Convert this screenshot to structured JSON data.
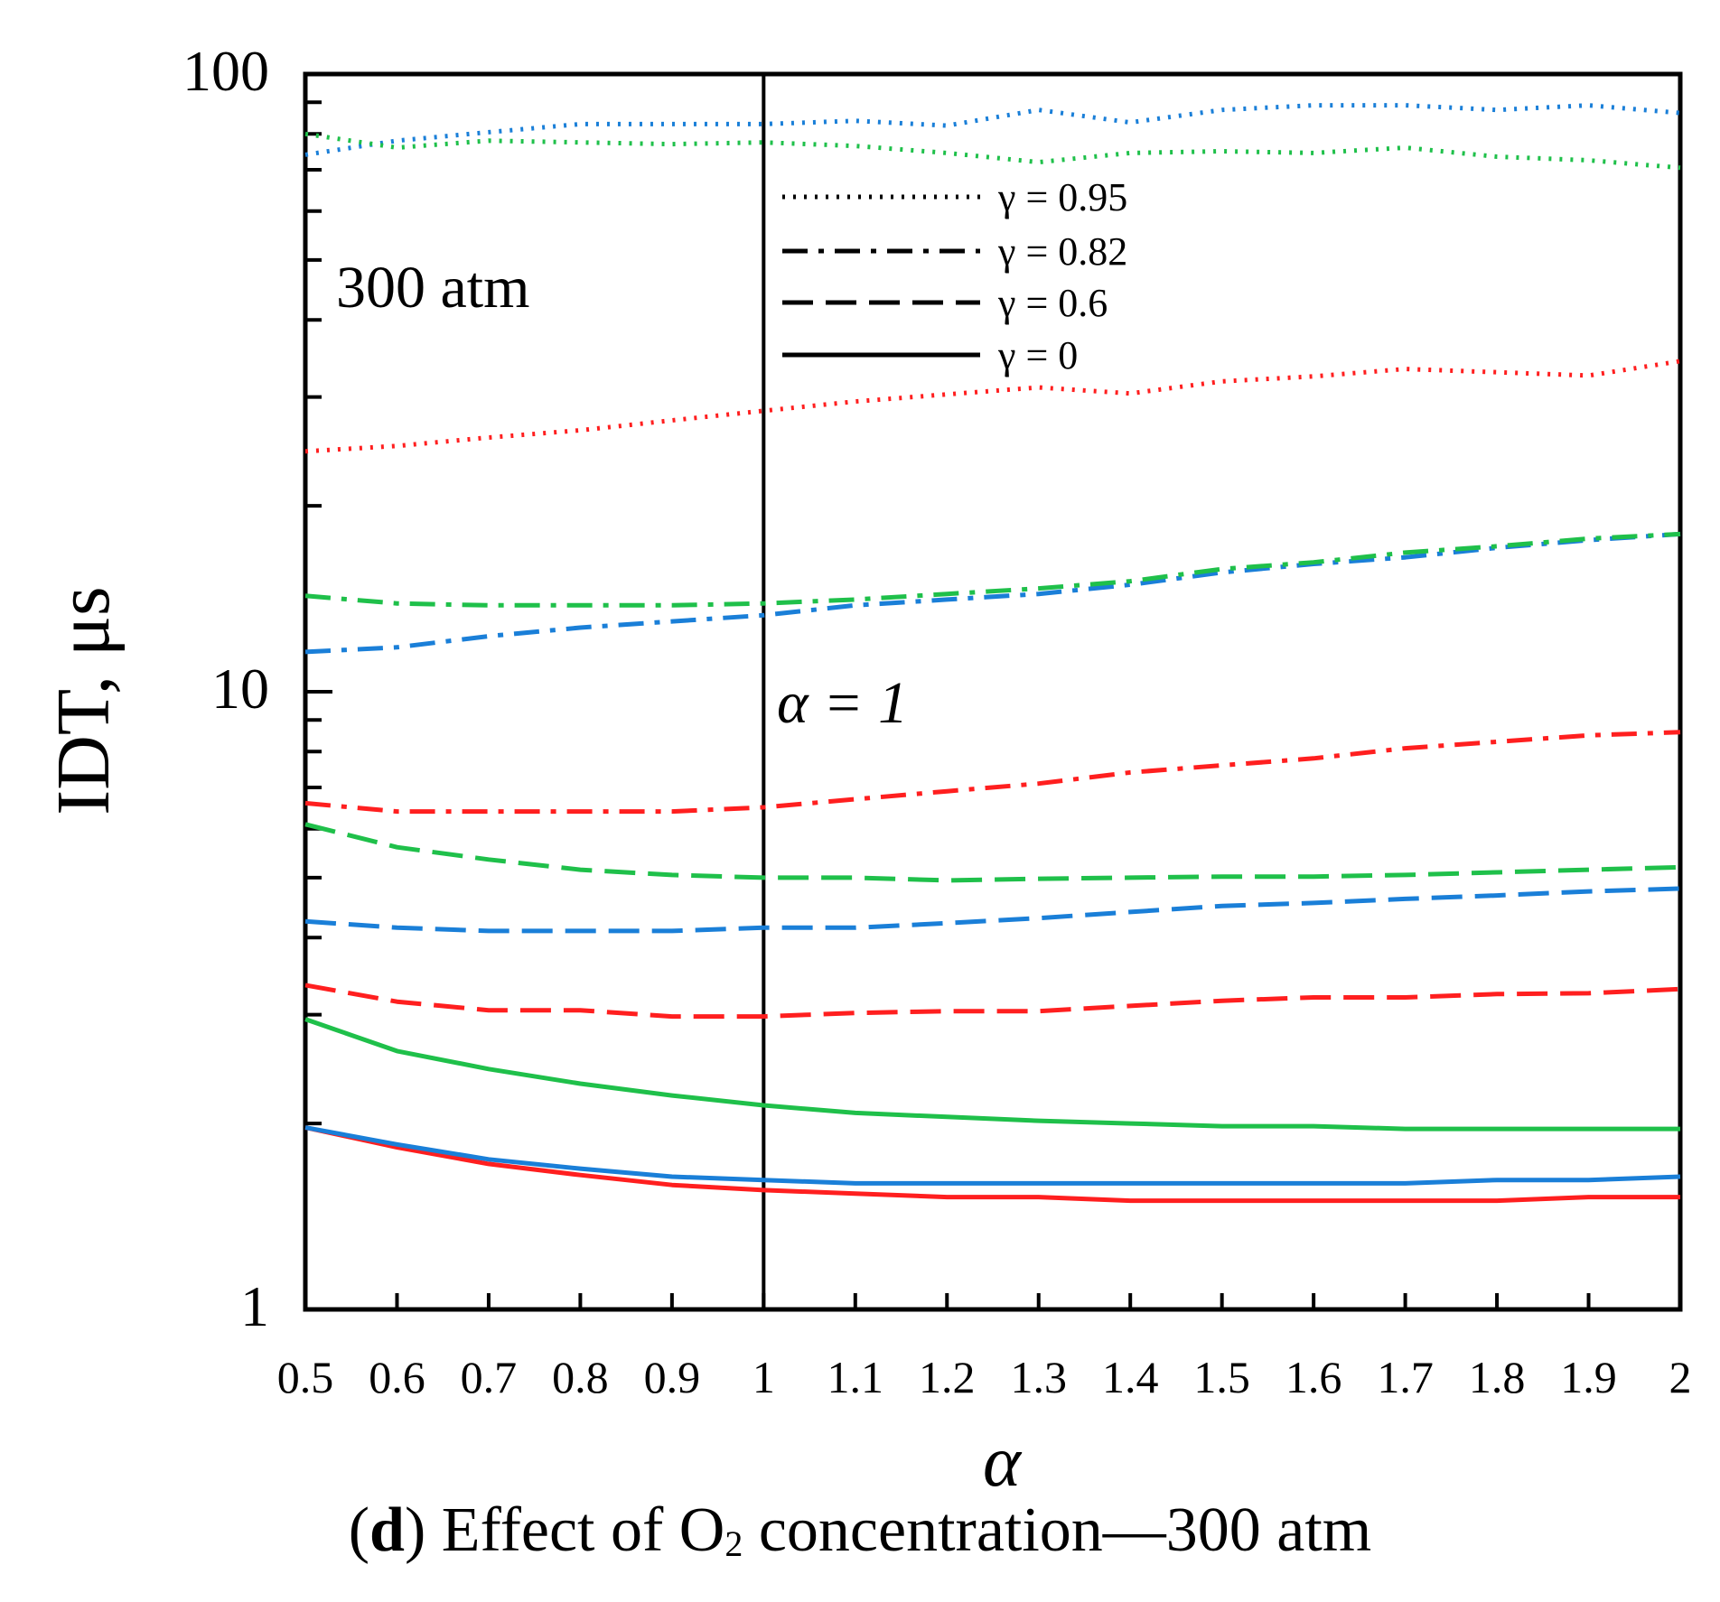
{
  "chart_data": {
    "type": "line",
    "title": "",
    "xlabel": "α",
    "ylabel": "IDT, μs",
    "x_scale": "linear",
    "y_scale": "log",
    "xlim": [
      0.5,
      2
    ],
    "ylim": [
      1,
      100
    ],
    "x_ticks": [
      "0.5",
      "0.6",
      "0.7",
      "0.8",
      "0.9",
      "1",
      "1.1",
      "1.2",
      "1.3",
      "1.4",
      "1.5",
      "1.6",
      "1.7",
      "1.8",
      "1.9",
      "2"
    ],
    "y_ticks": [
      "1",
      "10",
      "100"
    ],
    "grid": false,
    "legend_position": "top-center",
    "legend": [
      {
        "label": "γ = 0.95",
        "style": "dotted"
      },
      {
        "label": "γ = 0.82",
        "style": "dash-dot"
      },
      {
        "label": "γ = 0.6",
        "style": "dashed"
      },
      {
        "label": "γ = 0",
        "style": "solid"
      }
    ],
    "annotations": {
      "pressure": "300 atm",
      "vline_label": "α = 1",
      "vline_x": 1
    },
    "colors": {
      "red": "#ff1f1f",
      "blue": "#1a7fd8",
      "green": "#1fc04a"
    },
    "x": [
      0.5,
      0.6,
      0.7,
      0.8,
      0.9,
      1.0,
      1.1,
      1.2,
      1.3,
      1.4,
      1.5,
      1.6,
      1.7,
      1.8,
      1.9,
      2.0
    ],
    "series": [
      {
        "color": "red",
        "style": "dotted",
        "values": [
          24.5,
          25.0,
          25.8,
          26.5,
          27.5,
          28.5,
          29.5,
          30.3,
          31.1,
          30.4,
          31.8,
          32.4,
          33.3,
          32.9,
          32.5,
          34.3
        ]
      },
      {
        "color": "blue",
        "style": "dotted",
        "values": [
          74.0,
          78.0,
          80.5,
          83.0,
          83.0,
          83.0,
          84.0,
          82.5,
          87.5,
          83.5,
          87.5,
          89.0,
          89.0,
          87.5,
          89.0,
          86.5
        ]
      },
      {
        "color": "green",
        "style": "dotted",
        "values": [
          80.0,
          76.0,
          78.0,
          77.5,
          77.0,
          77.5,
          76.5,
          74.5,
          72.0,
          74.5,
          75.0,
          74.5,
          76.0,
          73.5,
          72.5,
          70.5
        ]
      },
      {
        "color": "red",
        "style": "dash-dot",
        "values": [
          6.6,
          6.4,
          6.4,
          6.4,
          6.4,
          6.5,
          6.7,
          6.9,
          7.1,
          7.4,
          7.6,
          7.8,
          8.1,
          8.3,
          8.5,
          8.6
        ]
      },
      {
        "color": "blue",
        "style": "dash-dot",
        "values": [
          11.6,
          11.8,
          12.3,
          12.7,
          13.0,
          13.3,
          13.8,
          14.1,
          14.4,
          14.9,
          15.6,
          16.1,
          16.5,
          17.1,
          17.6,
          18.0
        ]
      },
      {
        "color": "green",
        "style": "dash-dot",
        "values": [
          14.3,
          13.9,
          13.8,
          13.8,
          13.8,
          13.9,
          14.1,
          14.4,
          14.7,
          15.1,
          15.8,
          16.2,
          16.8,
          17.2,
          17.7,
          18.0
        ]
      },
      {
        "color": "red",
        "style": "dashed",
        "values": [
          3.35,
          3.15,
          3.05,
          3.05,
          2.98,
          2.98,
          3.02,
          3.04,
          3.04,
          3.1,
          3.16,
          3.2,
          3.2,
          3.24,
          3.25,
          3.3
        ]
      },
      {
        "color": "blue",
        "style": "dashed",
        "values": [
          4.25,
          4.15,
          4.1,
          4.1,
          4.1,
          4.15,
          4.15,
          4.22,
          4.3,
          4.4,
          4.5,
          4.55,
          4.62,
          4.68,
          4.75,
          4.8
        ]
      },
      {
        "color": "green",
        "style": "dashed",
        "values": [
          6.1,
          5.6,
          5.35,
          5.15,
          5.05,
          5.0,
          5.0,
          4.95,
          4.98,
          5.0,
          5.02,
          5.02,
          5.05,
          5.1,
          5.15,
          5.2
        ]
      },
      {
        "color": "red",
        "style": "solid",
        "values": [
          1.97,
          1.83,
          1.72,
          1.65,
          1.59,
          1.56,
          1.54,
          1.52,
          1.52,
          1.5,
          1.5,
          1.5,
          1.5,
          1.5,
          1.52,
          1.52
        ]
      },
      {
        "color": "blue",
        "style": "solid",
        "values": [
          1.97,
          1.85,
          1.75,
          1.69,
          1.64,
          1.62,
          1.6,
          1.6,
          1.6,
          1.6,
          1.6,
          1.6,
          1.6,
          1.62,
          1.62,
          1.64
        ]
      },
      {
        "color": "green",
        "style": "solid",
        "values": [
          2.95,
          2.62,
          2.45,
          2.32,
          2.22,
          2.14,
          2.08,
          2.05,
          2.02,
          2.0,
          1.98,
          1.98,
          1.96,
          1.96,
          1.96,
          1.96
        ]
      }
    ]
  },
  "caption": {
    "bold": "d",
    "open": "(",
    "close": ")",
    "pre": "Effect of O",
    "sub": "2",
    "post": "concentration—300 atm"
  }
}
